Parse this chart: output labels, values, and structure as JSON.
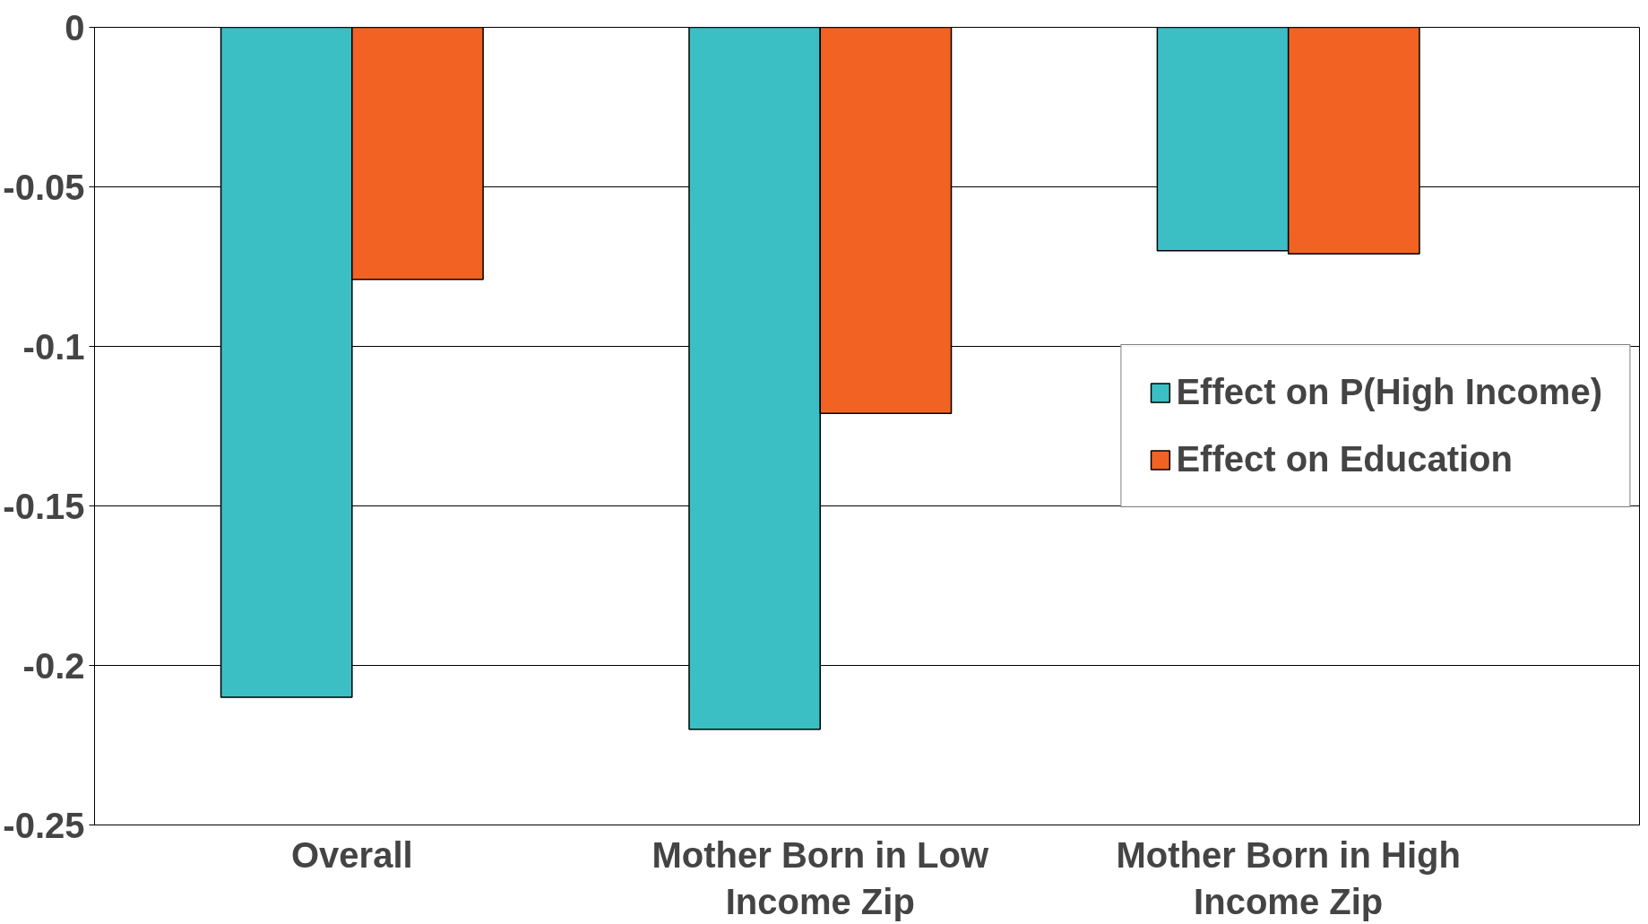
{
  "chart_data": {
    "type": "bar",
    "categories": [
      "Overall",
      "Mother Born in Low Income Zip",
      "Mother Born in High Income Zip"
    ],
    "series": [
      {
        "name": "Effect on P(High Income)",
        "color": "#3bbfc4",
        "values": [
          -0.21,
          -0.22,
          -0.07
        ]
      },
      {
        "name": "Effect on Education",
        "color": "#f26222",
        "values": [
          -0.079,
          -0.121,
          -0.071
        ]
      }
    ],
    "ylim": [
      -0.25,
      0
    ],
    "yticks": [
      0,
      -0.05,
      -0.1,
      -0.15,
      -0.2,
      -0.25
    ],
    "grid": "y",
    "legend": "right"
  }
}
